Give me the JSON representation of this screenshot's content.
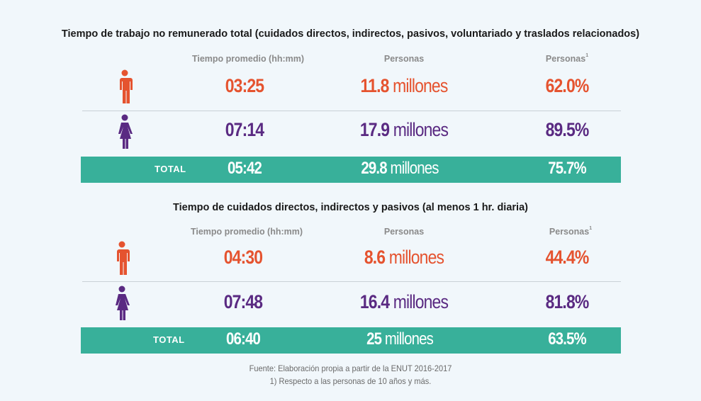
{
  "colors": {
    "men": "#e5532f",
    "women": "#5a2a82",
    "total_band": "#38b09a"
  },
  "sections": [
    {
      "title": "Tiempo de trabajo no remunerado total (cuidados directos, indirectos, pasivos, voluntariado y traslados relacionados)",
      "headers": {
        "time": "Tiempo promedio (hh:mm)",
        "people": "Personas",
        "percent": "Personas",
        "percent_note": "1"
      },
      "rows": [
        {
          "icon": "man-icon",
          "time": "03:25",
          "people_num": "11.8",
          "people_unit": "millones",
          "percent": "62.0%"
        },
        {
          "icon": "woman-icon",
          "time": "07:14",
          "people_num": "17.9",
          "people_unit": "millones",
          "percent": "89.5%"
        }
      ],
      "total": {
        "label": "TOTAL",
        "time": "05:42",
        "people_num": "29.8",
        "people_unit": "millones",
        "percent": "75.7%"
      }
    },
    {
      "title": "Tiempo de cuidados directos, indirectos y pasivos (al menos 1 hr. diaria)",
      "headers": {
        "time": "Tiempo promedio (hh:mm)",
        "people": "Personas",
        "percent": "Personas",
        "percent_note": "1"
      },
      "rows": [
        {
          "icon": "man-icon",
          "time": "04:30",
          "people_num": "8.6",
          "people_unit": "millones",
          "percent": "44.4%"
        },
        {
          "icon": "woman-icon",
          "time": "07:48",
          "people_num": "16.4",
          "people_unit": "millones",
          "percent": "81.8%"
        }
      ],
      "total": {
        "label": "TOTAL",
        "time": "06:40",
        "people_num": "25",
        "people_unit": "millones",
        "percent": "63.5%"
      }
    }
  ],
  "footer": {
    "source": "Fuente: Elaboración propia a partir de la ENUT 2016-2017",
    "note": "1) Respecto a las personas de 10 años y más."
  }
}
